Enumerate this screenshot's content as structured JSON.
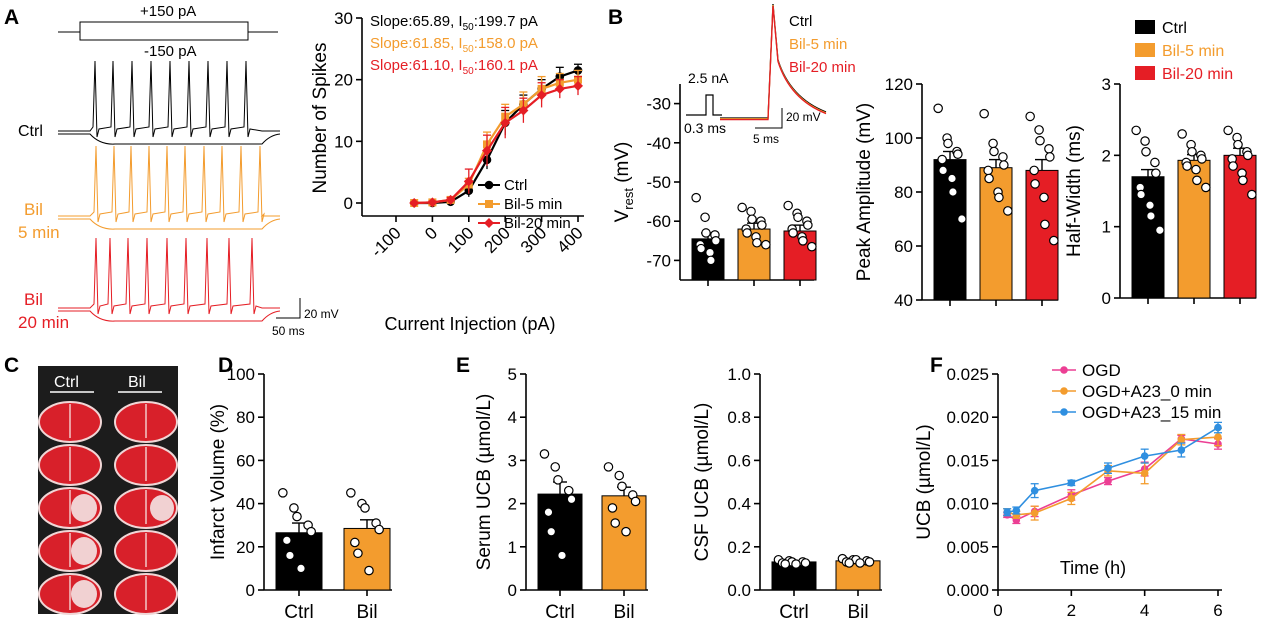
{
  "colors": {
    "ctrl": "#000000",
    "bil5": "#F39C2E",
    "bil20": "#E51E25",
    "ogd": "#EC3F94",
    "a23_0": "#F39C2E",
    "a23_15": "#2F8FE0"
  },
  "panels": {
    "A": "A",
    "B": "B",
    "C": "C",
    "D": "D",
    "E": "E",
    "F": "F"
  },
  "traces": {
    "stim_top": "+150 pA",
    "stim_bottom": "-150 pA",
    "ctrl_label": "Ctrl",
    "bil5_line1": "Bil",
    "bil5_line2": "5 min",
    "bil20_line1": "Bil",
    "bil20_line2": "20 min",
    "scale_v": "20 mV",
    "scale_t": "50 ms"
  },
  "ap_inset": {
    "stim": "2.5 nA",
    "time": "0.3 ms",
    "scale_v": "20 mV",
    "scale_t": "5 ms",
    "legend": [
      "Ctrl",
      "Bil-5 min",
      "Bil-20 min"
    ]
  },
  "b_legend": [
    "Ctrl",
    "Bil-5 min",
    "Bil-20 min"
  ],
  "slice": {
    "ctrl": "Ctrl",
    "bil": "Bil"
  },
  "chart_data": [
    {
      "id": "spikes",
      "type": "line",
      "ylabel": "Number of Spikes",
      "xlabel": "Current Injection (pA)",
      "xlim": [
        -100,
        400
      ],
      "ylim": [
        0,
        30
      ],
      "xticks": [
        "-100",
        "0",
        "100",
        "200",
        "300",
        "400"
      ],
      "yticks": [
        "0",
        "10",
        "20",
        "30"
      ],
      "annotations": [
        {
          "pre": "Slope:65.89, I",
          "sub": "50",
          "post": ":199.7 pA",
          "series": "Ctrl"
        },
        {
          "pre": "Slope:61.85, I",
          "sub": "50",
          "post": ":158.0 pA",
          "series": "Bil-5 min"
        },
        {
          "pre": "Slope:61.10, I",
          "sub": "50",
          "post": ":160.1 pA",
          "series": "Bil-20 min"
        }
      ],
      "x": [
        -50,
        0,
        50,
        100,
        150,
        200,
        250,
        300,
        350,
        400
      ],
      "series": [
        {
          "name": "Ctrl",
          "marker": "circle",
          "values": [
            0,
            0,
            0.2,
            2,
            7,
            13,
            16,
            18.5,
            20.5,
            21.5
          ],
          "errors": [
            0,
            0,
            0.3,
            1,
            1.5,
            2,
            1.5,
            1.5,
            1.5,
            1
          ]
        },
        {
          "name": "Bil-5 min",
          "marker": "square",
          "values": [
            0,
            0.1,
            0.5,
            3,
            9.5,
            14,
            16,
            18.5,
            19.5,
            20
          ],
          "errors": [
            0,
            0.2,
            0.4,
            1,
            2,
            2,
            2,
            2,
            1.5,
            1.5
          ]
        },
        {
          "name": "Bil-20 min",
          "marker": "diamond",
          "values": [
            0,
            0.1,
            0.5,
            3.5,
            8.5,
            13,
            15,
            17.5,
            18.5,
            19
          ],
          "errors": [
            0,
            0.2,
            0.4,
            2,
            2.5,
            2.5,
            2,
            2,
            1.5,
            1.5
          ]
        }
      ]
    },
    {
      "id": "vrest",
      "type": "bar",
      "ylabel": "V_rest (mV)",
      "ylabel_main": "V",
      "ylabel_sub": "rest",
      "ylabel_post": " (mV)",
      "ylim": [
        -75,
        -25
      ],
      "baseline": -75,
      "yticks": [
        "-30",
        "-40",
        "-50",
        "-60",
        "-70"
      ],
      "categories": [
        "Ctrl",
        "Bil-5 min",
        "Bil-20 min"
      ],
      "values": [
        -64.5,
        -62,
        -62.5
      ],
      "errors": [
        1.5,
        1.5,
        1.5
      ],
      "points": [
        [
          -54,
          -59,
          -63,
          -63.5,
          -65,
          -66,
          -67,
          -68,
          -70
        ],
        [
          -56.5,
          -57.5,
          -59.5,
          -60,
          -61,
          -62,
          -63,
          -64,
          -65.5,
          -66
        ],
        [
          -56,
          -58,
          -59,
          -60,
          -61,
          -62,
          -63,
          -64,
          -65,
          -66.5
        ]
      ]
    },
    {
      "id": "peak",
      "type": "bar",
      "ylabel": "Peak Amplitude (mV)",
      "ylim": [
        40,
        120
      ],
      "baseline": 40,
      "yticks": [
        "40",
        "60",
        "80",
        "100",
        "120"
      ],
      "categories": [
        "Ctrl",
        "Bil-5 min",
        "Bil-20 min"
      ],
      "values": [
        92,
        89,
        88
      ],
      "errors": [
        3,
        3,
        4
      ],
      "points": [
        [
          111,
          100,
          98,
          95,
          94,
          92,
          88,
          85,
          80,
          70
        ],
        [
          109,
          98,
          95,
          93,
          90,
          88,
          85,
          80,
          78,
          73
        ],
        [
          108,
          103,
          99,
          96,
          93,
          88,
          83,
          78,
          68,
          62
        ]
      ]
    },
    {
      "id": "halfwidth",
      "type": "bar",
      "ylabel": "Half-Width (ms)",
      "ylim": [
        0,
        3
      ],
      "baseline": 0,
      "yticks": [
        "0",
        "1",
        "2",
        "3"
      ],
      "categories": [
        "Ctrl",
        "Bil-5 min",
        "Bil-20 min"
      ],
      "values": [
        1.7,
        1.93,
        2.0
      ],
      "errors": [
        0.1,
        0.08,
        0.1
      ],
      "points": [
        [
          2.35,
          2.2,
          2.05,
          1.9,
          1.75,
          1.55,
          1.45,
          1.3,
          1.15,
          0.95
        ],
        [
          2.3,
          2.15,
          2.05,
          2.0,
          1.95,
          1.9,
          1.85,
          1.8,
          1.65,
          1.55
        ],
        [
          2.35,
          2.25,
          2.15,
          2.05,
          2.0,
          1.95,
          1.85,
          1.75,
          1.65,
          1.45
        ]
      ]
    },
    {
      "id": "infarct",
      "type": "bar",
      "ylabel": "Infarct Volume (%)",
      "ylim": [
        0,
        100
      ],
      "baseline": 0,
      "yticks": [
        "0",
        "20",
        "40",
        "60",
        "80",
        "100"
      ],
      "categories": [
        "Ctrl",
        "Bil"
      ],
      "values": [
        26.5,
        28.5
      ],
      "errors": [
        4.5,
        4
      ],
      "points": [
        [
          45,
          38,
          34,
          30,
          27,
          23,
          16,
          10
        ],
        [
          45,
          40,
          38,
          31,
          28,
          22,
          17,
          9
        ]
      ]
    },
    {
      "id": "serum",
      "type": "bar",
      "ylabel": "Serum UCB (µmol/L)",
      "ylim": [
        0,
        5
      ],
      "baseline": 0,
      "yticks": [
        "0",
        "1",
        "2",
        "3",
        "4",
        "5"
      ],
      "categories": [
        "Ctrl",
        "Bil"
      ],
      "values": [
        2.22,
        2.18
      ],
      "errors": [
        0.28,
        0.2
      ],
      "points": [
        [
          3.15,
          2.85,
          2.55,
          2.3,
          2.1,
          1.8,
          1.35,
          0.8
        ],
        [
          2.85,
          2.65,
          2.4,
          2.2,
          2.05,
          1.9,
          1.55,
          1.35
        ]
      ]
    },
    {
      "id": "csf",
      "type": "bar",
      "ylabel": "CSF UCB (µmol/L)",
      "ylim": [
        0,
        1
      ],
      "baseline": 0,
      "yticks": [
        "0.0",
        "0.2",
        "0.4",
        "0.6",
        "0.8",
        "1.0"
      ],
      "categories": [
        "Ctrl",
        "Bil"
      ],
      "values": [
        0.13,
        0.135
      ],
      "errors": [
        0.005,
        0.005
      ],
      "points": [
        [
          0.14,
          0.135,
          0.13,
          0.13,
          0.125,
          0.125,
          0.12,
          0.12
        ],
        [
          0.145,
          0.14,
          0.14,
          0.135,
          0.13,
          0.13,
          0.125,
          0.125
        ]
      ]
    },
    {
      "id": "ucb",
      "type": "line",
      "ylabel": "UCB (µmol/L)",
      "xlabel": "Time (h)",
      "xlim": [
        0,
        6
      ],
      "ylim": [
        0,
        0.025
      ],
      "xticks": [
        "0",
        "2",
        "4",
        "6"
      ],
      "yticks": [
        "0.000",
        "0.005",
        "0.010",
        "0.015",
        "0.020",
        "0.025"
      ],
      "legend": [
        "OGD",
        "OGD+A23_0 min",
        "OGD+A23_15 min"
      ],
      "x": [
        0.25,
        0.5,
        1,
        2,
        3,
        4,
        5,
        6
      ],
      "series": [
        {
          "name": "OGD",
          "values": [
            0.0087,
            0.0081,
            0.0091,
            0.011,
            0.0126,
            0.014,
            0.0175,
            0.0169
          ],
          "errors": [
            0.0003,
            0.0004,
            0.0006,
            0.0006,
            0.0004,
            0.0008,
            0.0004,
            0.0006
          ]
        },
        {
          "name": "OGD+A23_0 min",
          "values": [
            0.009,
            0.0087,
            0.0089,
            0.0106,
            0.0138,
            0.0135,
            0.0174,
            0.0177
          ],
          "errors": [
            0.0004,
            0.0004,
            0.0008,
            0.0007,
            0.0006,
            0.0012,
            0.0006,
            0.001
          ]
        },
        {
          "name": "OGD+A23_15 min",
          "values": [
            0.009,
            0.0092,
            0.0115,
            0.0124,
            0.0141,
            0.0155,
            0.0162,
            0.0188
          ],
          "errors": [
            0.0004,
            0.0004,
            0.0008,
            0.0003,
            0.0006,
            0.0008,
            0.0008,
            0.0006
          ]
        }
      ]
    }
  ]
}
